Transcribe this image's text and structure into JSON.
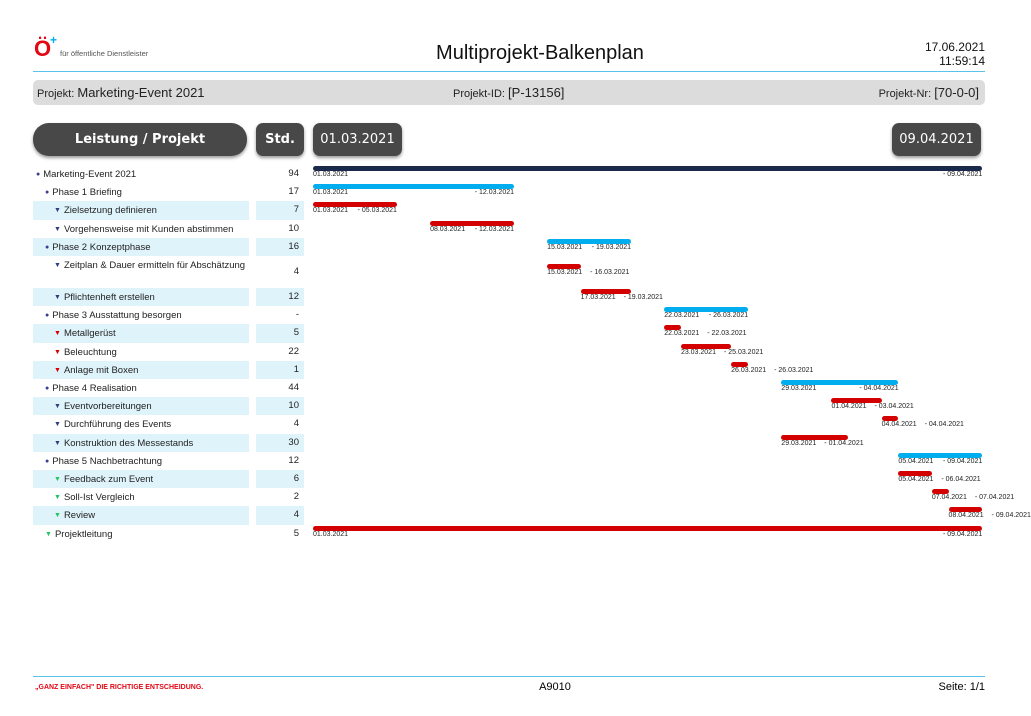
{
  "header": {
    "logo_letter": "Ö",
    "logo_plus": "+",
    "logo_text": "für öffentliche Dienstleister",
    "title": "Multiprojekt-Balkenplan",
    "date": "17.06.2021",
    "time": "11:59:14"
  },
  "info": {
    "projekt_label": "Projekt:",
    "projekt_value": "Marketing-Event 2021",
    "id_label": "Projekt-ID:",
    "id_value": "[P-13156]",
    "nr_label": "Projekt-Nr:",
    "nr_value": "[70-0-0]"
  },
  "columns": {
    "task": "Leistung / Projekt",
    "hours": "Std.",
    "start": "01.03.2021",
    "end": "09.04.2021"
  },
  "colors": {
    "project": "#1b2a4a",
    "phase": "#00aeef",
    "task": "#d40000",
    "highlight": "#dff3fb"
  },
  "rows": [
    {
      "name": "Marketing-Event 2021",
      "hours": "94",
      "level": 0,
      "icon": "bullet",
      "icon_color": "#3a3f8f",
      "type": "project",
      "start": "01.03.2021",
      "end": "09.04.2021",
      "hl": false
    },
    {
      "name": "Phase 1 Briefing",
      "hours": "17",
      "level": 1,
      "icon": "bullet",
      "icon_color": "#3a3f8f",
      "type": "phase",
      "start": "01.03.2021",
      "end": "12.03.2021",
      "hl": false
    },
    {
      "name": "Zielsetzung definieren",
      "hours": "7",
      "level": 2,
      "icon": "triangle",
      "icon_color": "#2a3f7f",
      "type": "task",
      "start": "01.03.2021",
      "end": "05.03.2021",
      "hl": true
    },
    {
      "name": "Vorgehensweise mit Kunden abstimmen",
      "hours": "10",
      "level": 2,
      "icon": "triangle",
      "icon_color": "#2a3f7f",
      "type": "task",
      "start": "08.03.2021",
      "end": "12.03.2021",
      "hl": false
    },
    {
      "name": "Phase 2 Konzeptphase",
      "hours": "16",
      "level": 1,
      "icon": "bullet",
      "icon_color": "#3a3f8f",
      "type": "phase",
      "start": "15.03.2021",
      "end": "19.03.2021",
      "hl": true
    },
    {
      "name": "Zeitplan & Dauer ermitteln für Abschätzung",
      "hours": "4",
      "level": 2,
      "icon": "triangle",
      "icon_color": "#2a3f7f",
      "type": "task",
      "start": "15.03.2021",
      "end": "16.03.2021",
      "hl": false,
      "tall": true
    },
    {
      "name": "Pflichtenheft erstellen",
      "hours": "12",
      "level": 2,
      "icon": "triangle",
      "icon_color": "#2a3f7f",
      "type": "task",
      "start": "17.03.2021",
      "end": "19.03.2021",
      "hl": true
    },
    {
      "name": "Phase 3 Ausstattung besorgen",
      "hours": "-",
      "level": 1,
      "icon": "bullet",
      "icon_color": "#3a3f8f",
      "type": "phase",
      "start": "22.03.2021",
      "end": "26.03.2021",
      "hl": false
    },
    {
      "name": "Metallgerüst",
      "hours": "5",
      "level": 2,
      "icon": "triangle",
      "icon_color": "#d40000",
      "type": "task",
      "start": "22.03.2021",
      "end": "22.03.2021",
      "hl": true
    },
    {
      "name": "Beleuchtung",
      "hours": "22",
      "level": 2,
      "icon": "triangle",
      "icon_color": "#d40000",
      "type": "task",
      "start": "23.03.2021",
      "end": "25.03.2021",
      "hl": false
    },
    {
      "name": "Anlage mit Boxen",
      "hours": "1",
      "level": 2,
      "icon": "triangle",
      "icon_color": "#d40000",
      "type": "task",
      "start": "26.03.2021",
      "end": "26.03.2021",
      "hl": true
    },
    {
      "name": "Phase 4 Realisation",
      "hours": "44",
      "level": 1,
      "icon": "bullet",
      "icon_color": "#3a3f8f",
      "type": "phase",
      "start": "29.03.2021",
      "end": "04.04.2021",
      "hl": false
    },
    {
      "name": "Eventvorbereitungen",
      "hours": "10",
      "level": 2,
      "icon": "triangle",
      "icon_color": "#2a3f7f",
      "type": "task",
      "start": "01.04.2021",
      "end": "03.04.2021",
      "hl": true
    },
    {
      "name": "Durchführung des Events",
      "hours": "4",
      "level": 2,
      "icon": "triangle",
      "icon_color": "#2a3f7f",
      "type": "task",
      "start": "04.04.2021",
      "end": "04.04.2021",
      "hl": false
    },
    {
      "name": "Konstruktion des Messestands",
      "hours": "30",
      "level": 2,
      "icon": "triangle",
      "icon_color": "#2a3f7f",
      "type": "task",
      "start": "29.03.2021",
      "end": "01.04.2021",
      "hl": true
    },
    {
      "name": "Phase 5 Nachbetrachtung",
      "hours": "12",
      "level": 1,
      "icon": "bullet",
      "icon_color": "#3a3f8f",
      "type": "phase",
      "start": "05.04.2021",
      "end": "09.04.2021",
      "hl": false
    },
    {
      "name": "Feedback zum Event",
      "hours": "6",
      "level": 2,
      "icon": "triangle",
      "icon_color": "#22c55e",
      "type": "task",
      "start": "05.04.2021",
      "end": "06.04.2021",
      "hl": true
    },
    {
      "name": "Soll-Ist Vergleich",
      "hours": "2",
      "level": 2,
      "icon": "triangle",
      "icon_color": "#22c55e",
      "type": "task",
      "start": "07.04.2021",
      "end": "07.04.2021",
      "hl": false
    },
    {
      "name": "Review",
      "hours": "4",
      "level": 2,
      "icon": "triangle",
      "icon_color": "#22c55e",
      "type": "task",
      "start": "08.04.2021",
      "end": "09.04.2021",
      "hl": true
    },
    {
      "name": "Projektleitung",
      "hours": "5",
      "level": 1,
      "icon": "triangle",
      "icon_color": "#22c55e",
      "type": "task",
      "start": "01.03.2021",
      "end": "09.04.2021",
      "hl": false,
      "full": true
    }
  ],
  "footer": {
    "slogan": "„GANZ EINFACH\" DIE RICHTIGE ENTSCHEIDUNG.",
    "code": "A9010",
    "page": "Seite: 1/1"
  }
}
